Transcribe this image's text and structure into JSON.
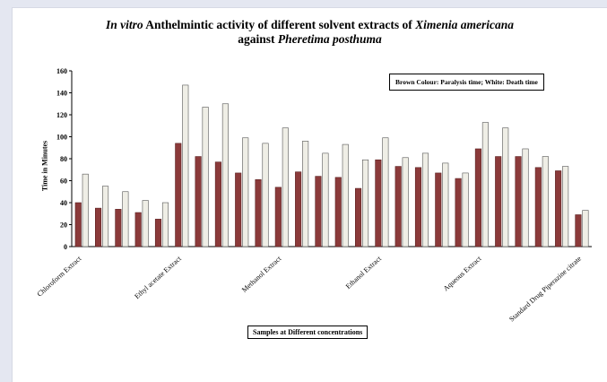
{
  "chart_data": {
    "type": "bar",
    "title_prefix_italic": "In vitro",
    "title_middle": " Anthelmintic activity of different solvent extracts of ",
    "title_species_italic": "Ximenia americana",
    "title_line2_prefix": "against ",
    "title_line2_italic": "Pheretima posthuma",
    "legend_text": "Brown Colour: Paralysis time; White: Death time",
    "xlabel": "Samples at Different concentrations",
    "ylabel": "Time in Minutes",
    "ylim": [
      0,
      160
    ],
    "yticks": [
      0,
      20,
      40,
      60,
      80,
      100,
      120,
      140,
      160
    ],
    "category_labels": [
      {
        "text": "Chloroform Extract",
        "group": 0
      },
      {
        "text": "Ethyl acetate Extract",
        "group": 5
      },
      {
        "text": "Methanol Extract",
        "group": 10
      },
      {
        "text": "Ethanol Extract",
        "group": 15
      },
      {
        "text": "Aqueous Extract",
        "group": 20
      },
      {
        "text": "Standard Drug Piperazine citrate",
        "group": 25
      }
    ],
    "series": [
      {
        "key": "paralysis",
        "color": "#8b3a3a",
        "values": [
          40,
          35,
          34,
          31,
          25,
          94,
          82,
          77,
          67,
          61,
          54,
          68,
          64,
          63,
          53,
          79,
          73,
          72,
          67,
          62,
          89,
          82,
          82,
          72,
          69,
          29
        ]
      },
      {
        "key": "death",
        "color": "#efeee6",
        "values": [
          66,
          55,
          50,
          42,
          40,
          147,
          127,
          130,
          99,
          94,
          108,
          96,
          85,
          93,
          79,
          99,
          81,
          85,
          76,
          67,
          113,
          108,
          89,
          82,
          73,
          33
        ]
      }
    ]
  }
}
